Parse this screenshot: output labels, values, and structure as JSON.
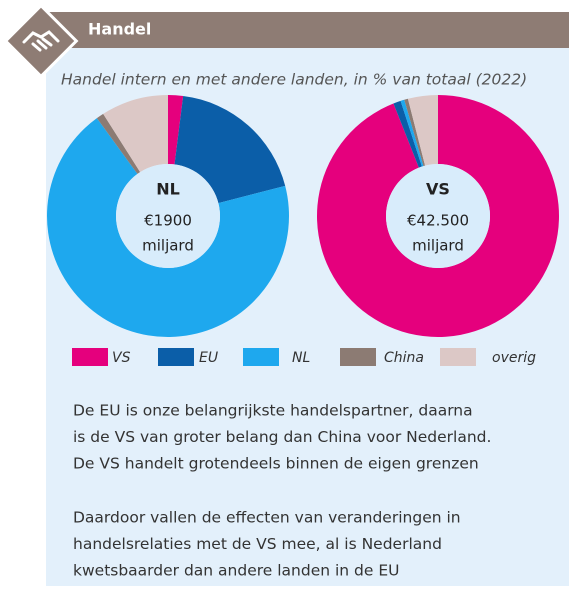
{
  "header": {
    "title": "Handel"
  },
  "subtitle": "Handel intern en met andere landen, in % van totaal (2022)",
  "chart_data": [
    {
      "type": "pie",
      "title": "NL",
      "center_lines": [
        "€1900",
        "miljard"
      ],
      "categories": [
        "VS",
        "EU",
        "NL",
        "China",
        "overig"
      ],
      "values": [
        2,
        19,
        69,
        1,
        9
      ],
      "colors": [
        "#e5007d",
        "#0b5ea8",
        "#1ea8ee",
        "#8c7b73",
        "#dcc8c6"
      ]
    },
    {
      "type": "pie",
      "title": "VS",
      "center_lines": [
        "€42.500",
        "miljard"
      ],
      "categories": [
        "VS",
        "EU",
        "NL",
        "China",
        "overig"
      ],
      "values": [
        94,
        1,
        0.5,
        0.5,
        4
      ],
      "colors": [
        "#e5007d",
        "#0b5ea8",
        "#1ea8ee",
        "#8c7b73",
        "#dcc8c6"
      ]
    }
  ],
  "paragraphs": [
    [
      "De EU is onze belangrijkste handelspartner, daarna",
      "is de VS van groter belang dan China voor Nederland.",
      "De VS handelt grotendeels binnen de eigen grenzen"
    ],
    [
      "Daardoor vallen de effecten van veranderingen in",
      "handelsrelaties met de VS mee, al is Nederland",
      "kwetsbaarder dan andere landen in de EU"
    ]
  ]
}
